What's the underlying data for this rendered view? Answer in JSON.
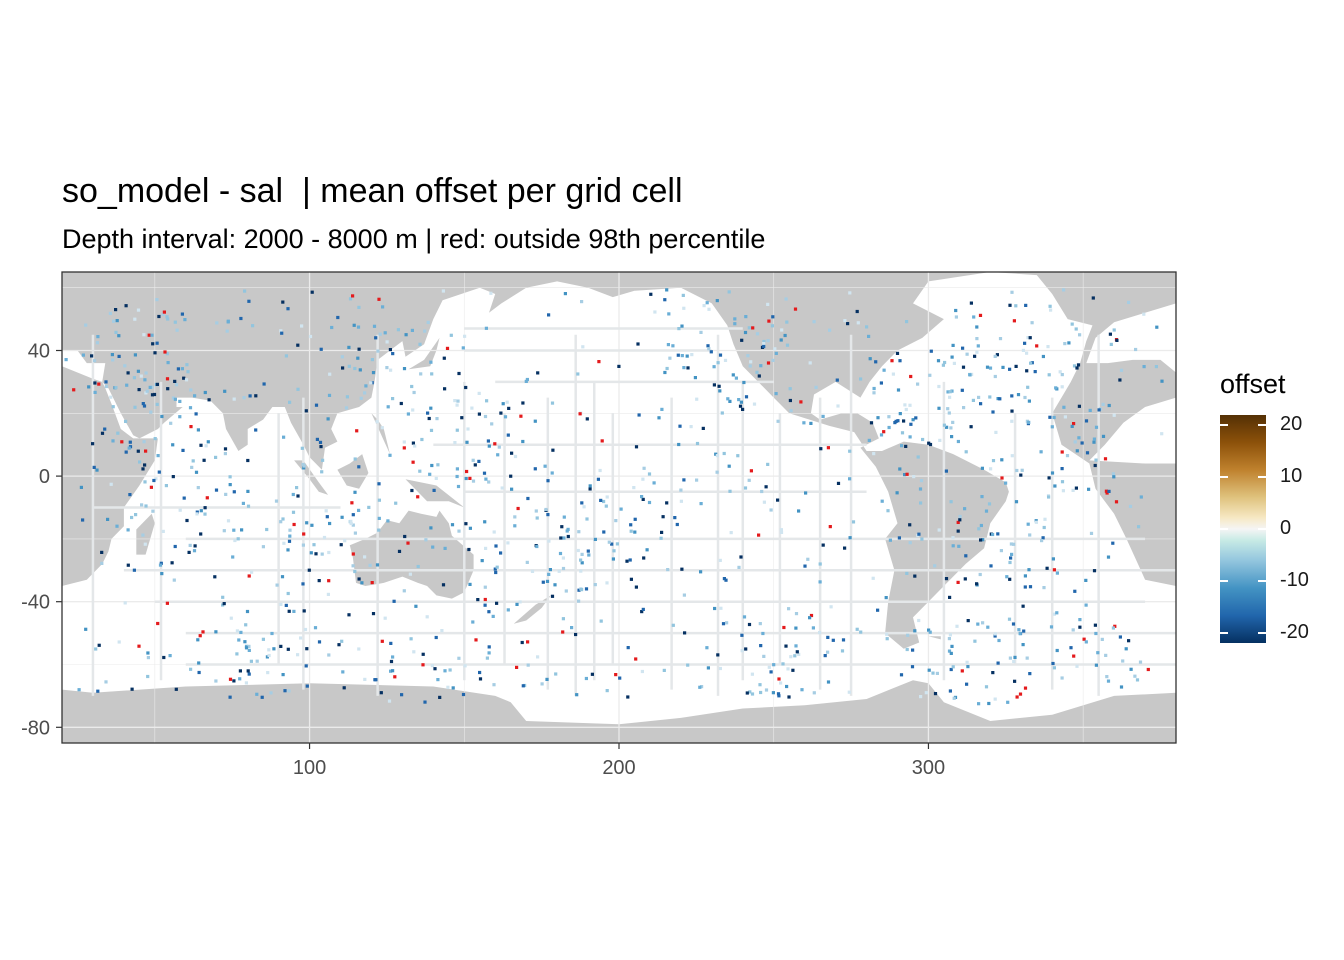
{
  "chart_data": {
    "type": "heatmap",
    "title": "so_model - sal  | mean offset per grid cell",
    "subtitle": "Depth interval: 2000 - 8000 m | red: outside 98th percentile",
    "x_ticks": [
      100,
      200,
      300
    ],
    "y_ticks": [
      40,
      0,
      -40,
      -80
    ],
    "xlim": [
      20,
      380
    ],
    "ylim": [
      -85,
      65
    ],
    "legend": {
      "title": "offset",
      "ticks": [
        20,
        10,
        0,
        -10,
        -20
      ],
      "limits": [
        -22,
        22
      ],
      "position": "right"
    },
    "colors": {
      "land": "#c8c8c8",
      "ocean": "#ffffff",
      "track_light": "#e6e9eb",
      "outlier": "#e41a1c"
    }
  }
}
